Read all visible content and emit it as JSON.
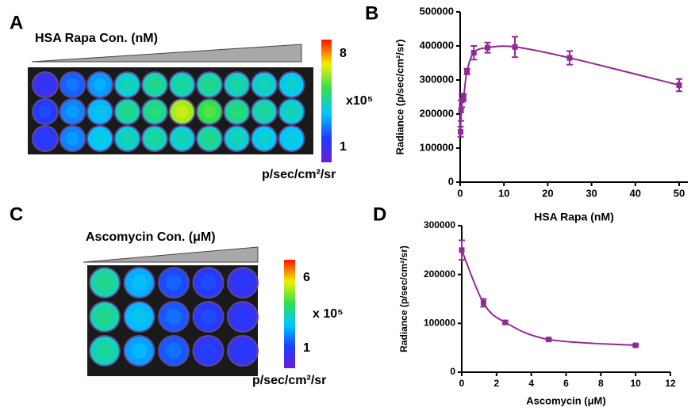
{
  "panels": {
    "A": {
      "label": "A",
      "title": "HSA Rapa Con. (nM)",
      "colorbar_ticks": [
        8,
        1
      ],
      "scale": "x10⁵",
      "unit": "p/sec/cm²/sr"
    },
    "C": {
      "label": "C",
      "title": "Ascomycin Con. (μM)",
      "colorbar_ticks": [
        6,
        1
      ],
      "scale": "x 10⁵",
      "unit": "p/sec/cm²/sr"
    }
  },
  "chart_data": [
    {
      "type": "line",
      "panel_label": "B",
      "x_label": "HSA Rapa (nM)",
      "y_label": "Radiance (p/sec/cm²/sr)",
      "x": [
        0.1,
        0.2,
        0.39,
        0.78,
        1.56,
        3.125,
        6.25,
        12.5,
        25,
        50
      ],
      "series": [
        {
          "color": "#8e2a96",
          "values": [
            148000,
            210000,
            240000,
            248000,
            325000,
            380000,
            395000,
            397000,
            365000,
            285000
          ],
          "errors": [
            15000,
            30000,
            20000,
            10000,
            8000,
            20000,
            15000,
            30000,
            20000,
            18000
          ]
        }
      ],
      "xlim": [
        0,
        52
      ],
      "xticks": [
        0,
        10,
        20,
        30,
        40,
        50
      ],
      "ylim": [
        0,
        500000
      ],
      "yticks": [
        0,
        100000,
        200000,
        300000,
        400000,
        500000
      ]
    },
    {
      "type": "line",
      "panel_label": "D",
      "x_label": "Ascomycin (μM)",
      "y_label": "Radiance (p/sec/cm²/sr)",
      "x": [
        0,
        1.25,
        2.5,
        5,
        10
      ],
      "series": [
        {
          "color": "#8e2a96",
          "values": [
            250000,
            142000,
            102000,
            67000,
            55000
          ],
          "errors": [
            20000,
            8000,
            3000,
            2000,
            2000
          ]
        }
      ],
      "xlim": [
        0,
        12
      ],
      "xticks": [
        0,
        2,
        4,
        6,
        8,
        10,
        12
      ],
      "ylim": [
        0,
        300000
      ],
      "yticks": [
        0,
        100000,
        200000,
        300000
      ]
    }
  ]
}
